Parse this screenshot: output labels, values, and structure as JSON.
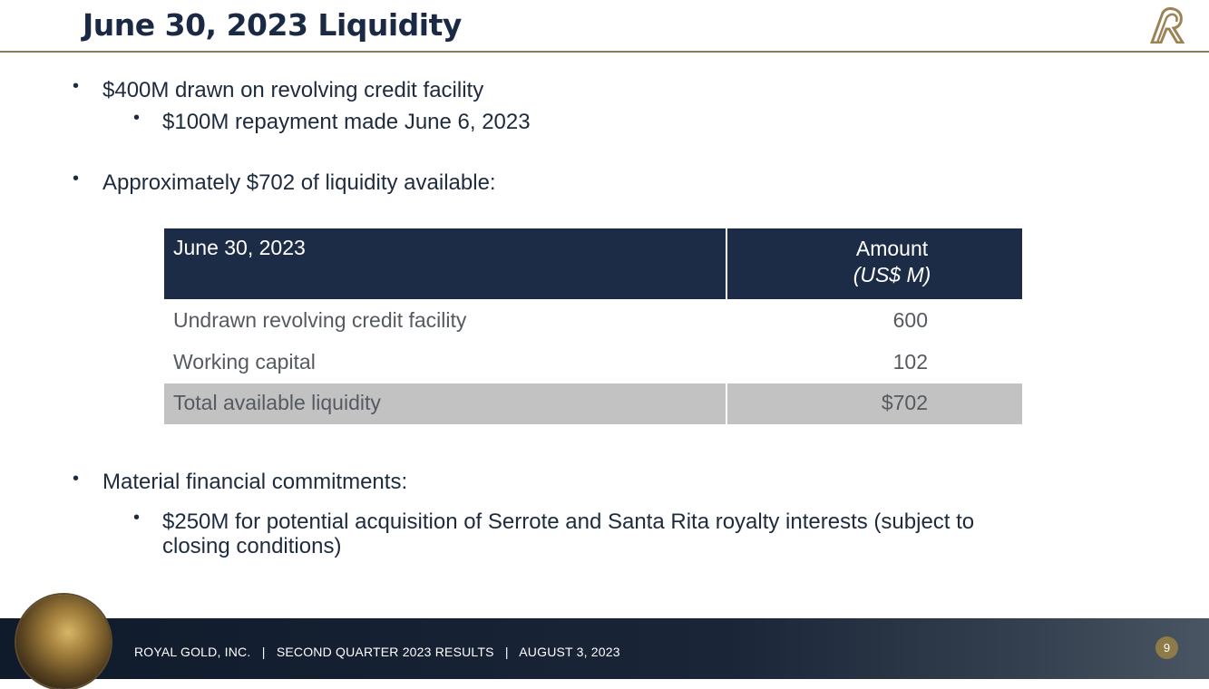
{
  "slide": {
    "title": "June 30, 2023 Liquidity",
    "bullets": {
      "b1": "$400M drawn on revolving credit facility",
      "b1_sub": "$100M repayment made June 6, 2023",
      "b2": "Approximately $702 of liquidity available:",
      "b3": "Material financial commitments:",
      "b3_sub_line1": "$250M for potential acquisition of Serrote and Santa Rita royalty interests (subject to",
      "b3_sub_line2": "closing conditions)"
    },
    "bullet_glyph": "•"
  },
  "table": {
    "header": {
      "col1": "June 30, 2023",
      "col2_line1": "Amount",
      "col2_line2": "(US$ M)"
    },
    "rows": [
      {
        "label": "Undrawn revolving credit facility",
        "value": "600"
      },
      {
        "label": "Working capital",
        "value": "102"
      }
    ],
    "total": {
      "label": "Total available liquidity",
      "value": "$702"
    }
  },
  "footer": {
    "text": "ROYAL GOLD, INC.   |   SECOND QUARTER 2023 RESULTS   |   AUGUST 3, 2023",
    "page_number": "9"
  },
  "colors": {
    "navy": "#1c2c47",
    "gold": "#8f7a49",
    "total_row": "#c2c2c2"
  },
  "icons": {
    "logo": "royal-gold-logo-icon",
    "medallion": "gold-bars-medallion-icon"
  }
}
